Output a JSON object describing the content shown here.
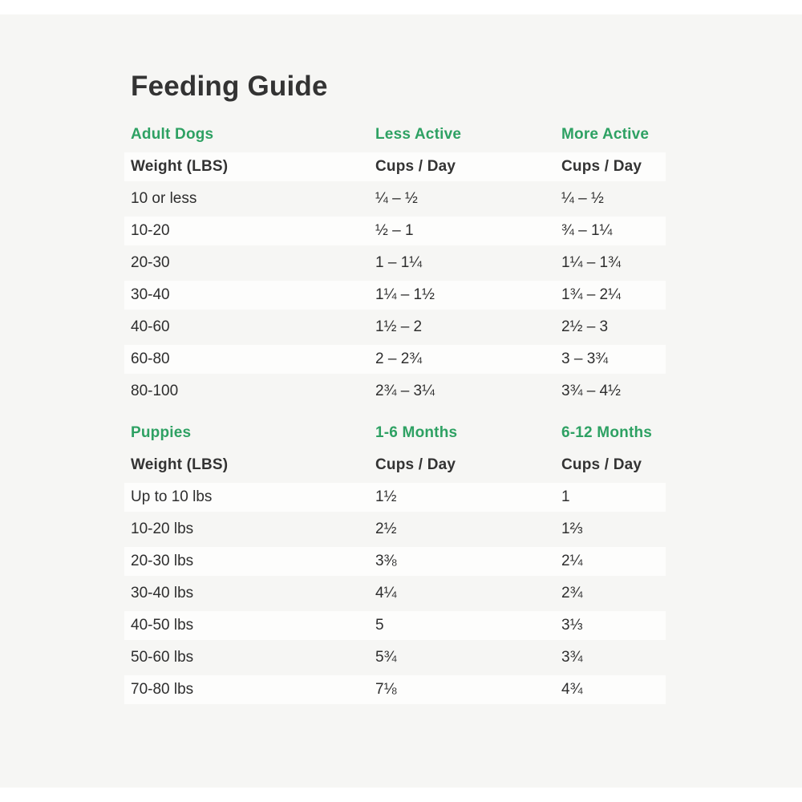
{
  "title": "Feeding Guide",
  "colors": {
    "accent_green": "#2ea163",
    "heading_text": "#333333",
    "body_text": "#2e2e2e",
    "row_highlight": "#fdfdfc",
    "page_background": "#f6f6f4"
  },
  "tables": [
    {
      "name": "Adult Dogs",
      "section_headers": [
        "Adult Dogs",
        "Less Active",
        "More Active"
      ],
      "column_headers": [
        "Weight (LBS)",
        "Cups / Day",
        "Cups / Day"
      ],
      "rows": [
        [
          "10 or less",
          "¼ – ½",
          "¼ – ½"
        ],
        [
          "10-20",
          "½ – 1",
          "¾ – 1¼"
        ],
        [
          "20-30",
          "1 – 1¼",
          "1¼ – 1¾"
        ],
        [
          "30-40",
          "1¼ – 1½",
          "1¾ – 2¼"
        ],
        [
          "40-60",
          "1½ – 2",
          "2½ – 3"
        ],
        [
          "60-80",
          "2 – 2¾",
          "3 – 3¾"
        ],
        [
          "80-100",
          "2¾ – 3¼",
          "3¾ – 4½"
        ]
      ]
    },
    {
      "name": "Puppies",
      "section_headers": [
        "Puppies",
        "1-6 Months",
        "6-12 Months"
      ],
      "column_headers": [
        "Weight (LBS)",
        "Cups / Day",
        "Cups / Day"
      ],
      "rows": [
        [
          "Up to 10 lbs",
          "1½",
          "1"
        ],
        [
          "10-20 lbs",
          "2½",
          "1⅔"
        ],
        [
          "20-30 lbs",
          "3⅜",
          "2¼"
        ],
        [
          "30-40 lbs",
          "4¼",
          "2¾"
        ],
        [
          "40-50 lbs",
          "5",
          "3⅓"
        ],
        [
          "50-60 lbs",
          "5¾",
          "3¾"
        ],
        [
          "70-80 lbs",
          "7⅛",
          "4¾"
        ]
      ]
    }
  ]
}
